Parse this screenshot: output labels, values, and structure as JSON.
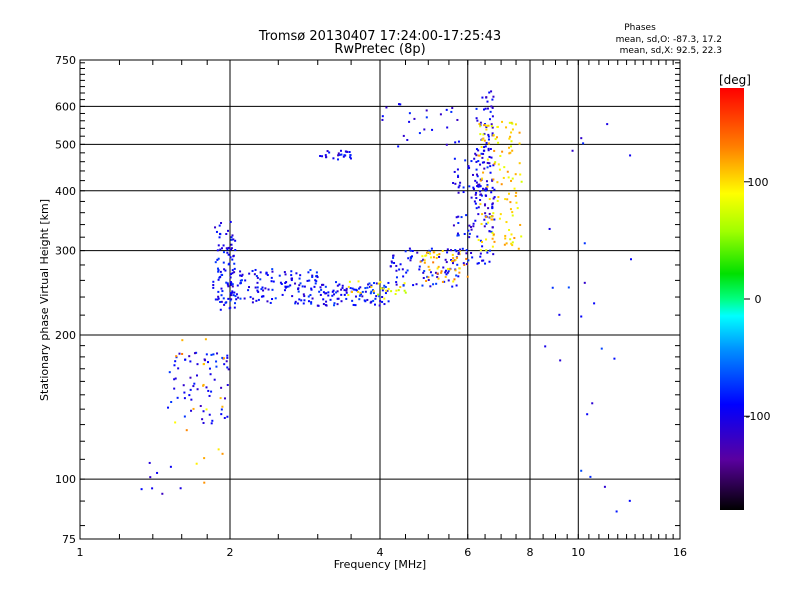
{
  "chart_data": {
    "type": "scatter",
    "title": "Tromsø 20130407 17:24:00-17:25:43",
    "subtitle": "RwPretec (8p)",
    "xlabel": "Frequency [MHz]",
    "ylabel": "Stationary phase Virtual Height [km]",
    "x_scale": "log",
    "y_scale": "log",
    "xlim": [
      1,
      16
    ],
    "ylim": [
      75,
      750
    ],
    "x_ticks": [
      1,
      2,
      4,
      6,
      8,
      10,
      16
    ],
    "x_tick_labels": [
      "1",
      "2",
      "4",
      "6",
      "8",
      "10",
      "16"
    ],
    "y_ticks": [
      75,
      100,
      200,
      300,
      400,
      500,
      600,
      750
    ],
    "y_tick_labels": [
      "75",
      "100",
      "200",
      "300",
      "400",
      "500",
      "600",
      "750"
    ],
    "grid": true,
    "stats": {
      "heading": "Phases",
      "line_o": "mean, sd,O: -87.3, 17.2",
      "line_x": "mean, sd,X:  92.5, 22.3"
    },
    "colorbar": {
      "label": "[deg]",
      "range": [
        -180,
        180
      ],
      "ticks": [
        100,
        0,
        -100
      ],
      "tick_labels": [
        "100",
        "0",
        "-100"
      ]
    },
    "point_groups": [
      {
        "x_range": [
          1.85,
          2.05
        ],
        "y_range": [
          225,
          345
        ],
        "phase": -95,
        "count": 90
      },
      {
        "x_range": [
          2.0,
          3.0
        ],
        "y_range": [
          232,
          275
        ],
        "phase": -92,
        "count": 130
      },
      {
        "x_range": [
          3.0,
          4.2
        ],
        "y_range": [
          230,
          258
        ],
        "phase": -90,
        "count": 100
      },
      {
        "x_range": [
          3.4,
          4.6
        ],
        "y_range": [
          238,
          260
        ],
        "phase": 90,
        "count": 25
      },
      {
        "x_range": [
          4.2,
          5.8
        ],
        "y_range": [
          252,
          305
        ],
        "phase": -92,
        "count": 80
      },
      {
        "x_range": [
          4.8,
          6.0
        ],
        "y_range": [
          258,
          300
        ],
        "phase": 110,
        "count": 50
      },
      {
        "x_range": [
          5.6,
          6.8
        ],
        "y_range": [
          280,
          470
        ],
        "phase": -95,
        "count": 110
      },
      {
        "x_range": [
          6.2,
          6.8
        ],
        "y_range": [
          350,
          650
        ],
        "phase": -100,
        "count": 90
      },
      {
        "x_range": [
          6.3,
          7.7
        ],
        "y_range": [
          300,
          560
        ],
        "phase": 100,
        "count": 120
      },
      {
        "x_range": [
          3.0,
          3.5
        ],
        "y_range": [
          465,
          485
        ],
        "phase": -100,
        "count": 25
      },
      {
        "x_range": [
          3.9,
          5.9
        ],
        "y_range": [
          485,
          610
        ],
        "phase": -95,
        "count": 25
      },
      {
        "x_range": [
          1.5,
          2.0
        ],
        "y_range": [
          130,
          185
        ],
        "phase": -95,
        "count": 70
      },
      {
        "x_range": [
          1.5,
          1.95
        ],
        "y_range": [
          95,
          200
        ],
        "phase": 110,
        "count": 20
      },
      {
        "x_range": [
          1.25,
          1.6
        ],
        "y_range": [
          93,
          110
        ],
        "phase": -100,
        "count": 8
      },
      {
        "x_range": [
          8.5,
          13.5
        ],
        "y_range": [
          85,
          560
        ],
        "phase": -90,
        "count": 25
      }
    ]
  }
}
